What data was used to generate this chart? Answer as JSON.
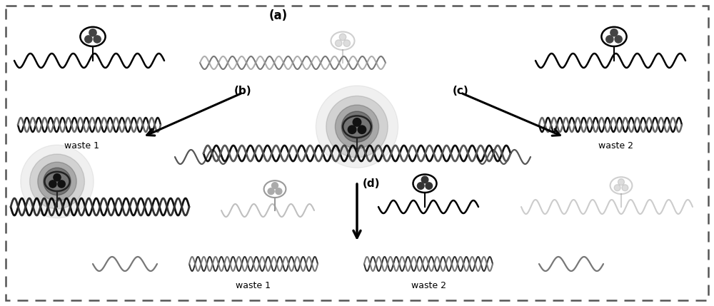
{
  "fig_width": 10.0,
  "fig_height": 4.29,
  "dpi": 100,
  "labels": {
    "a": "(a)",
    "b": "(b)",
    "c": "(c)",
    "d": "(d)",
    "waste1_top": "waste 1",
    "waste2_top": "waste 2",
    "waste1_bot": "waste 1",
    "waste2_bot": "waste 2"
  }
}
